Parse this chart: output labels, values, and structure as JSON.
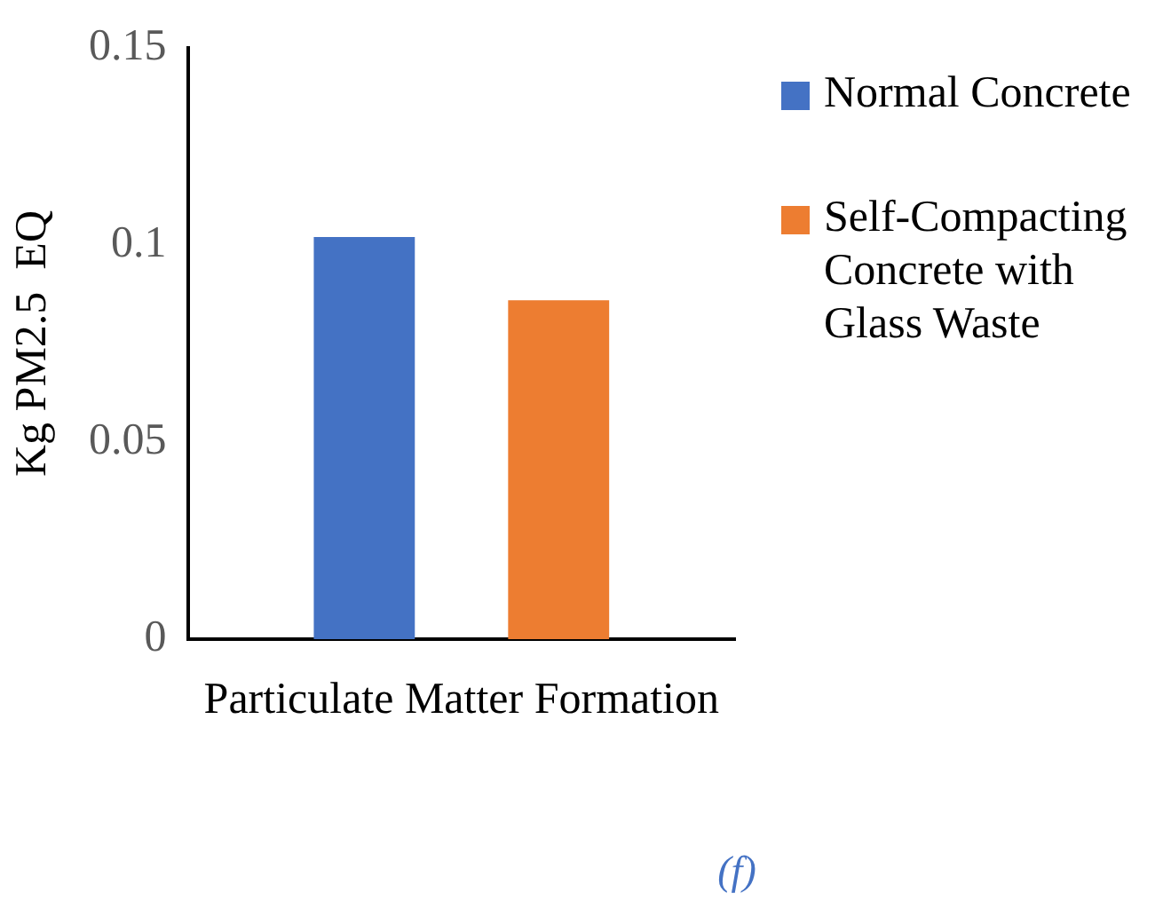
{
  "chart_data": {
    "type": "bar",
    "categories": [
      "Particulate Matter Formation"
    ],
    "series": [
      {
        "name": "Normal Concrete",
        "color": "#4472c4",
        "values": [
          0.102
        ]
      },
      {
        "name": "Self-Compacting Concrete with Glass Waste",
        "color": "#ed7d31",
        "values": [
          0.086
        ]
      }
    ],
    "ylabel": "Kg PM2.5  EQ",
    "ylim": [
      0,
      0.15
    ],
    "yticks": [
      0,
      0.05,
      0.1,
      0.15
    ],
    "grid": false,
    "legend": "right",
    "annotations": [
      "(f)"
    ]
  }
}
